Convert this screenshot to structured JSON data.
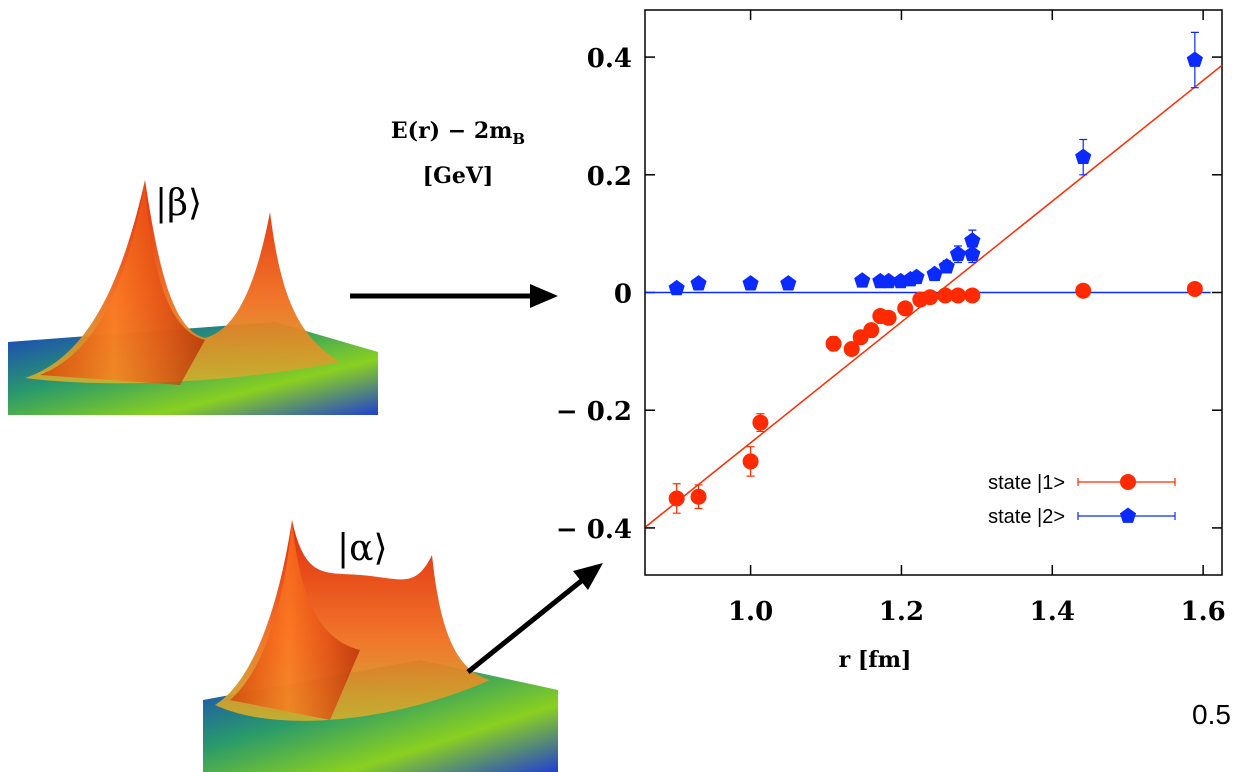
{
  "chart_data": {
    "type": "scatter",
    "y_label": {
      "main": "E(r) − 2m",
      "subscript": "B",
      "unit": "[GeV]"
    },
    "x_label": "r  [fm]",
    "annotation": "0.5",
    "xlim": [
      0.86,
      1.625
    ],
    "ylim": [
      -0.48,
      0.48
    ],
    "xticks": [
      {
        "value": 1,
        "label": "1.0"
      },
      1.2,
      1.4,
      1.6
    ],
    "yticks": [
      {
        "value": -0.4,
        "label": "− 0.4"
      },
      {
        "value": -0.2,
        "label": "− 0.2"
      },
      0,
      0.2,
      0.4
    ],
    "legend": "lower right",
    "series": [
      {
        "name": "state |1>",
        "color": "#ff2a00",
        "marker": "circle",
        "x": [
          0.902,
          0.931,
          1.0,
          1.013,
          1.11,
          1.134,
          1.146,
          1.16,
          1.172,
          1.183,
          1.205,
          1.225,
          1.238,
          1.258,
          1.275,
          1.294,
          1.441,
          1.589
        ],
        "values": [
          -0.35,
          -0.347,
          -0.287,
          -0.221,
          -0.087,
          -0.096,
          -0.076,
          -0.064,
          -0.04,
          -0.043,
          -0.027,
          -0.012,
          -0.008,
          -0.005,
          -0.005,
          -0.005,
          0.003,
          0.006
        ],
        "errors": [
          0.025,
          0.02,
          0.025,
          0.015,
          0.012,
          0.01,
          0.01,
          0.008,
          0.008,
          0.008,
          0.006,
          0.006,
          0.005,
          0.005,
          0.005,
          0.005,
          0.005,
          0.005
        ]
      },
      {
        "name": "state |2>",
        "color": "#0a2aff",
        "marker": "pentagon",
        "x": [
          0.902,
          0.931,
          1.0,
          1.05,
          1.148,
          1.172,
          1.183,
          1.199,
          1.212,
          1.22,
          1.244,
          1.26,
          1.275,
          1.294,
          1.294,
          1.441,
          1.589
        ],
        "values": [
          0.007,
          0.015,
          0.015,
          0.015,
          0.02,
          0.019,
          0.019,
          0.019,
          0.022,
          0.026,
          0.031,
          0.044,
          0.065,
          0.065,
          0.088,
          0.23,
          0.395
        ],
        "errors": [
          0.005,
          0.005,
          0.005,
          0.005,
          0.006,
          0.005,
          0.005,
          0.005,
          0.005,
          0.006,
          0.008,
          0.01,
          0.014,
          0.014,
          0.018,
          0.03,
          0.047
        ]
      }
    ],
    "fits": [
      {
        "color": "#ff2a00",
        "x": [
          0.861,
          1.625
        ],
        "y": [
          -0.398,
          0.386
        ]
      },
      {
        "color": "#0a2aff",
        "x": [
          0.861,
          1.61
        ],
        "y": [
          0,
          0
        ]
      }
    ]
  },
  "images": [
    {
      "label": "|β⟩"
    },
    {
      "label": "|α⟩"
    }
  ]
}
